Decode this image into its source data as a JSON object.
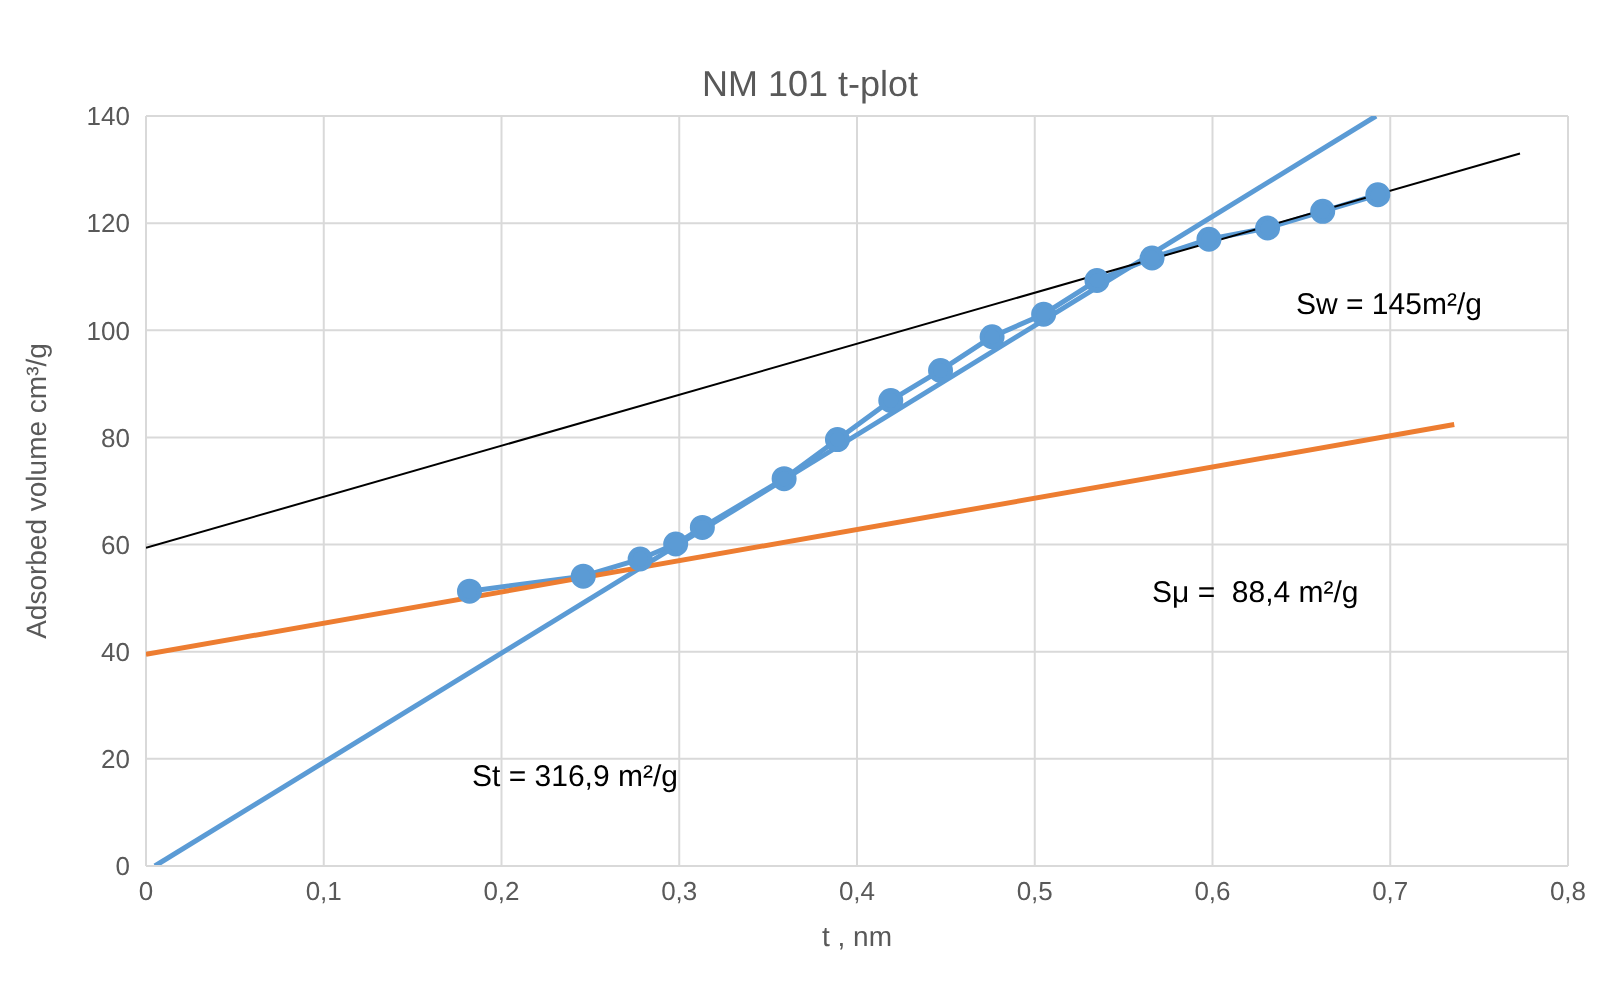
{
  "chart_data": {
    "type": "line",
    "title": "NM 101 t-plot",
    "xlabel": "t , nm",
    "ylabel": "Adsorbed volume cm³/g",
    "series": [
      {
        "color": "#5b9bd5",
        "marker": "circle",
        "x": [
          0.182,
          0.246,
          0.278,
          0.298,
          0.313,
          0.359,
          0.389,
          0.419,
          0.447,
          0.476,
          0.505,
          0.535,
          0.566,
          0.598,
          0.631,
          0.662,
          0.693
        ],
        "values": [
          51.3,
          54.1,
          57.3,
          60.1,
          63.2,
          72.3,
          79.6,
          86.9,
          92.5,
          98.8,
          103.0,
          109.3,
          113.5,
          117.0,
          119.1,
          122.2,
          125.3
        ]
      },
      {
        "color": "#5b9bd5",
        "marker": "none",
        "x": [
          0.005,
          0.692
        ],
        "values": [
          0,
          140
        ]
      },
      {
        "color": "#000000",
        "marker": "none",
        "x": [
          0,
          0.773
        ],
        "values": [
          59.4,
          133.0
        ]
      },
      {
        "color": "#ed7d31",
        "marker": "none",
        "x": [
          0,
          0.736
        ],
        "values": [
          39.5,
          82.4
        ]
      }
    ],
    "xlim": [
      0,
      0.8
    ],
    "xticks": [
      0,
      {
        "value": 0.1,
        "label": "0,1"
      },
      {
        "value": 0.2,
        "label": "0,2"
      },
      {
        "value": 0.3,
        "label": "0,3"
      },
      {
        "value": 0.4,
        "label": "0,4"
      },
      {
        "value": 0.5,
        "label": "0,5"
      },
      {
        "value": 0.6,
        "label": "0,6"
      },
      {
        "value": 0.7,
        "label": "0,7"
      },
      {
        "value": 0.8,
        "label": "0,8"
      }
    ],
    "ylim": [
      0,
      140
    ],
    "yticks": [
      0,
      20,
      40,
      60,
      80,
      100,
      120,
      140
    ],
    "grid": true,
    "line_style": "solid",
    "annotations": [
      "St = 316,9 m²/g",
      "Sw = 145m²/g",
      "Sμ =  88,4 m²/g"
    ]
  }
}
